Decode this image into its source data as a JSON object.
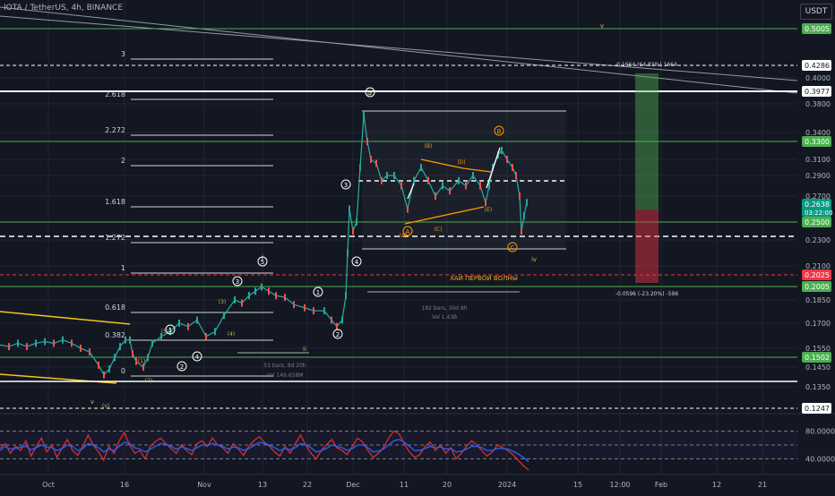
{
  "header": {
    "symbol_title": "IOTA / TetherUS, 4h, BINANCE",
    "currency_button": "USDT"
  },
  "colors": {
    "background": "#131722",
    "grid": "#1f2433",
    "up_candle": "#26a69a",
    "down_candle": "#ef5350",
    "green_level": "#4caf50",
    "white_level": "#ffffff",
    "red_level": "#f23645",
    "fib_line": "#d1d4dc",
    "elliott_label": "#ffffff",
    "orange_label": "#ff9800",
    "yellow_label": "#c9b25a",
    "rsi_line": "#d32f2f",
    "rsi_signal": "#2962ff",
    "current_price_tag": "#089981"
  },
  "chart_data": [
    {
      "type": "candlestick",
      "title": "IOTA / TetherUS, 4h, BINANCE",
      "y_axis_labels": [
        "0.4000",
        "0.3800",
        "0.3400",
        "0.3100",
        "0.2900",
        "0.2700",
        "0.2300",
        "0.2100",
        "0.1850",
        "0.1700",
        "0.1550",
        "0.1450",
        "0.1350"
      ],
      "x_axis_labels": [
        "Oct",
        "16",
        "Nov",
        "13",
        "22",
        "Dec",
        "11",
        "20",
        "2024",
        "15",
        "12:00",
        "Feb",
        "12",
        "21"
      ],
      "ylim": [
        0.1247,
        0.5005
      ],
      "close_path": [
        [
          0,
          0.157
        ],
        [
          10,
          0.156
        ],
        [
          20,
          0.158
        ],
        [
          30,
          0.156
        ],
        [
          40,
          0.158
        ],
        [
          50,
          0.159
        ],
        [
          60,
          0.158
        ],
        [
          70,
          0.16
        ],
        [
          80,
          0.158
        ],
        [
          90,
          0.155
        ],
        [
          100,
          0.153
        ],
        [
          110,
          0.146
        ],
        [
          116,
          0.141
        ],
        [
          122,
          0.144
        ],
        [
          128,
          0.15
        ],
        [
          134,
          0.156
        ],
        [
          140,
          0.16
        ],
        [
          145,
          0.16
        ],
        [
          148,
          0.152
        ],
        [
          152,
          0.148
        ],
        [
          160,
          0.145
        ],
        [
          165,
          0.15
        ],
        [
          170,
          0.158
        ],
        [
          180,
          0.162
        ],
        [
          190,
          0.165
        ],
        [
          200,
          0.17
        ],
        [
          210,
          0.168
        ],
        [
          220,
          0.172
        ],
        [
          230,
          0.162
        ],
        [
          240,
          0.165
        ],
        [
          250,
          0.175
        ],
        [
          262,
          0.185
        ],
        [
          270,
          0.183
        ],
        [
          278,
          0.19
        ],
        [
          285,
          0.195
        ],
        [
          292,
          0.2
        ],
        [
          300,
          0.195
        ],
        [
          308,
          0.19
        ],
        [
          318,
          0.188
        ],
        [
          328,
          0.182
        ],
        [
          340,
          0.18
        ],
        [
          350,
          0.178
        ],
        [
          362,
          0.178
        ],
        [
          370,
          0.172
        ],
        [
          376,
          0.168
        ],
        [
          382,
          0.172
        ],
        [
          386,
          0.19
        ],
        [
          388,
          0.22
        ],
        [
          390,
          0.26
        ],
        [
          394,
          0.24
        ],
        [
          398,
          0.25
        ],
        [
          402,
          0.3
        ],
        [
          406,
          0.365
        ],
        [
          410,
          0.33
        ],
        [
          414,
          0.31
        ],
        [
          420,
          0.305
        ],
        [
          426,
          0.285
        ],
        [
          432,
          0.29
        ],
        [
          440,
          0.29
        ],
        [
          448,
          0.28
        ],
        [
          455,
          0.26
        ],
        [
          462,
          0.285
        ],
        [
          470,
          0.3
        ],
        [
          478,
          0.285
        ],
        [
          486,
          0.27
        ],
        [
          494,
          0.28
        ],
        [
          502,
          0.275
        ],
        [
          512,
          0.285
        ],
        [
          520,
          0.28
        ],
        [
          528,
          0.29
        ],
        [
          536,
          0.28
        ],
        [
          542,
          0.265
        ],
        [
          546,
          0.28
        ],
        [
          550,
          0.3
        ],
        [
          556,
          0.315
        ],
        [
          560,
          0.32
        ],
        [
          566,
          0.31
        ],
        [
          572,
          0.3
        ],
        [
          576,
          0.29
        ],
        [
          580,
          0.27
        ],
        [
          582,
          0.24
        ],
        [
          585,
          0.255
        ],
        [
          588,
          0.265
        ]
      ],
      "horizontal_levels": [
        {
          "price": 0.5005,
          "label": "0.5005",
          "color": "#4caf50",
          "style": "solid"
        },
        {
          "price": 0.4286,
          "label": "0.4286",
          "color": "#ffffff",
          "style": "dashed"
        },
        {
          "price": 0.3977,
          "label": "0.3977",
          "color": "#ffffff",
          "style": "solid"
        },
        {
          "price": 0.33,
          "label": "0.3300",
          "color": "#4caf50",
          "style": "solid"
        },
        {
          "price": 0.25,
          "label": "0.2500",
          "color": "#4caf50",
          "style": "solid"
        },
        {
          "price": 0.2025,
          "label": "0.2025",
          "color": "#f23645",
          "style": "dashed"
        },
        {
          "price": 0.2005,
          "label": "0.2005",
          "color": "#4caf50",
          "style": "solid"
        },
        {
          "price": 0.1502,
          "label": "0.1502",
          "color": "#4caf50",
          "style": "solid"
        },
        {
          "price": 0.1247,
          "label": "0.1247",
          "color": "#ffffff",
          "style": "dashed"
        }
      ],
      "current_price": {
        "price": "0.2638",
        "countdown": "03:22:00"
      },
      "fib_levels": [
        {
          "label": "3"
        },
        {
          "label": "2.618"
        },
        {
          "label": "2.272"
        },
        {
          "label": "2"
        },
        {
          "label": "1.618"
        },
        {
          "label": "1.272"
        },
        {
          "label": "1"
        },
        {
          "label": "0.618"
        },
        {
          "label": "0.382"
        },
        {
          "label": "0"
        }
      ],
      "elliott_labels": [
        "1",
        "2",
        "3",
        "4",
        "5",
        "i",
        "ii",
        "iii",
        "iv",
        "v",
        "(v)",
        "(1)",
        "(2)",
        "(3)",
        "(4)",
        "(5)",
        "A",
        "B",
        "C",
        "(A)",
        "(B)",
        "(C)",
        "(D)",
        "(E)"
      ],
      "annotations": {
        "resistance_text": "ХАЙ ПЕРВОЙ ВОЛНЫ",
        "range_stats_1": "182 bars, 30d 8h",
        "range_stats_1_vol": "Vol 1.43B",
        "range_stats_2": "53 bars, 8d 20h",
        "range_stats_2_vol": "Vol 149.658M",
        "long_target": "0.1664 (64.83%) 1664",
        "long_stop": "-0.0596 (-23.20%) -596"
      }
    },
    {
      "type": "line",
      "title": "",
      "y_axis_labels": [
        "80.0000",
        "40.0000"
      ],
      "ylim": [
        20,
        100
      ],
      "series": [
        {
          "values": [
            55,
            62,
            48,
            58,
            52,
            66,
            44,
            58,
            70,
            50,
            60,
            42,
            56,
            68,
            52,
            45,
            58,
            74,
            60,
            50,
            38,
            58,
            48,
            66,
            78,
            60,
            48,
            52,
            40,
            58,
            65,
            70,
            62,
            55,
            48,
            60,
            52,
            46,
            62,
            66,
            58,
            70,
            60,
            56,
            48,
            62,
            54,
            45,
            58,
            66,
            72,
            64,
            58,
            50,
            44,
            58,
            48,
            62,
            74,
            60,
            48,
            40,
            52,
            60,
            68,
            56,
            52,
            46,
            58,
            70,
            64,
            52,
            42,
            48,
            56,
            70,
            80,
            76,
            62,
            50,
            42,
            46,
            58,
            64,
            52,
            60,
            48,
            56,
            40,
            48,
            58,
            66,
            60,
            52,
            44,
            50,
            60,
            56,
            52,
            46,
            38,
            30,
            24
          ]
        },
        {
          "values": [
            52,
            58,
            54,
            55,
            57,
            58,
            53,
            56,
            60,
            57,
            56,
            52,
            55,
            60,
            58,
            52,
            55,
            62,
            60,
            56,
            50,
            54,
            52,
            58,
            64,
            62,
            56,
            54,
            50,
            54,
            58,
            62,
            61,
            58,
            54,
            57,
            55,
            52,
            56,
            60,
            59,
            62,
            60,
            58,
            54,
            57,
            56,
            52,
            55,
            59,
            64,
            62,
            60,
            56,
            52,
            55,
            53,
            56,
            62,
            60,
            56,
            50,
            52,
            55,
            60,
            58,
            56,
            52,
            55,
            60,
            60,
            56,
            50,
            51,
            54,
            60,
            66,
            68,
            64,
            58,
            52,
            52,
            55,
            58,
            56,
            57,
            54,
            55,
            50,
            51,
            54,
            58,
            58,
            56,
            52,
            52,
            55,
            55,
            54,
            51,
            47,
            42,
            36
          ]
        }
      ]
    }
  ]
}
